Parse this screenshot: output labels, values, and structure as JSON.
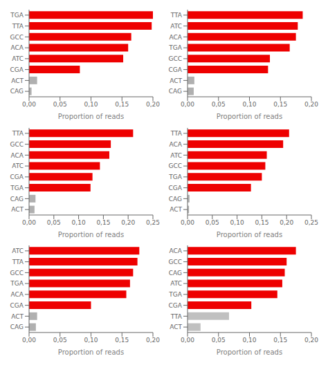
{
  "chart_data": [
    {
      "type": "bar",
      "orientation": "horizontal",
      "xlabel": "Proportion of reads",
      "categories": [
        "TGA",
        "TTA",
        "GCC",
        "ACA",
        "ATC",
        "CGA",
        "ACT",
        "CAG"
      ],
      "values": [
        0.2,
        0.198,
        0.165,
        0.16,
        0.152,
        0.082,
        0.013,
        0.004
      ],
      "colors": [
        "#ee0000",
        "#ee0000",
        "#ee0000",
        "#ee0000",
        "#ee0000",
        "#ee0000",
        "#b0b0b0",
        "#b0b0b0"
      ],
      "xlim": [
        0,
        0.2
      ],
      "xticks": [
        {
          "value": 0.0,
          "label": "0,00"
        },
        {
          "value": 0.05,
          "label": "0,05"
        },
        {
          "value": 0.1,
          "label": "0,10"
        },
        {
          "value": 0.15,
          "label": "0,15"
        },
        {
          "value": 0.2,
          "label": "0,20"
        }
      ]
    },
    {
      "type": "bar",
      "orientation": "horizontal",
      "xlabel": "Proportion of reads",
      "categories": [
        "TTA",
        "ATC",
        "ACA",
        "TGA",
        "GCC",
        "CGA",
        "ACT",
        "CAG"
      ],
      "values": [
        0.186,
        0.178,
        0.175,
        0.165,
        0.133,
        0.13,
        0.011,
        0.01
      ],
      "colors": [
        "#ee0000",
        "#ee0000",
        "#ee0000",
        "#ee0000",
        "#ee0000",
        "#ee0000",
        "#b0b0b0",
        "#b0b0b0"
      ],
      "xlim": [
        0,
        0.2
      ],
      "xticks": [
        {
          "value": 0.0,
          "label": "0,00"
        },
        {
          "value": 0.05,
          "label": "0,05"
        },
        {
          "value": 0.1,
          "label": "0,10"
        },
        {
          "value": 0.15,
          "label": "0,15"
        },
        {
          "value": 0.2,
          "label": "0,20"
        }
      ]
    },
    {
      "type": "bar",
      "orientation": "horizontal",
      "xlabel": "Proportion of reads",
      "categories": [
        "TTA",
        "GCC",
        "ACA",
        "ATC",
        "CGA",
        "TGA",
        "CAG",
        "ACT"
      ],
      "values": [
        0.21,
        0.165,
        0.162,
        0.143,
        0.128,
        0.124,
        0.013,
        0.011
      ],
      "colors": [
        "#ee0000",
        "#ee0000",
        "#ee0000",
        "#ee0000",
        "#ee0000",
        "#ee0000",
        "#b0b0b0",
        "#b0b0b0"
      ],
      "xlim": [
        0,
        0.25
      ],
      "xticks": [
        {
          "value": 0.0,
          "label": "0,00"
        },
        {
          "value": 0.05,
          "label": "0,05"
        },
        {
          "value": 0.1,
          "label": "0,10"
        },
        {
          "value": 0.15,
          "label": "0,15"
        },
        {
          "value": 0.2,
          "label": "0,20"
        },
        {
          "value": 0.25,
          "label": "0,25"
        }
      ]
    },
    {
      "type": "bar",
      "orientation": "horizontal",
      "xlabel": "Proportion of reads",
      "categories": [
        "TTA",
        "ACA",
        "ATC",
        "GCC",
        "TGA",
        "CGA",
        "CAG",
        "ACT"
      ],
      "values": [
        0.205,
        0.193,
        0.16,
        0.157,
        0.15,
        0.128,
        0.004,
        0.003
      ],
      "colors": [
        "#ee0000",
        "#ee0000",
        "#ee0000",
        "#ee0000",
        "#ee0000",
        "#ee0000",
        "#b0b0b0",
        "#b0b0b0"
      ],
      "xlim": [
        0,
        0.25
      ],
      "xticks": [
        {
          "value": 0.0,
          "label": "0,00"
        },
        {
          "value": 0.05,
          "label": "0,05"
        },
        {
          "value": 0.1,
          "label": "0,10"
        },
        {
          "value": 0.15,
          "label": "0,15"
        },
        {
          "value": 0.2,
          "label": "0,20"
        },
        {
          "value": 0.25,
          "label": "0,25"
        }
      ]
    },
    {
      "type": "bar",
      "orientation": "horizontal",
      "xlabel": "Proportion of reads",
      "categories": [
        "ATC",
        "TTA",
        "GCC",
        "TGA",
        "ACA",
        "CGA",
        "ACT",
        "CAG"
      ],
      "values": [
        0.178,
        0.175,
        0.168,
        0.163,
        0.157,
        0.1,
        0.013,
        0.011
      ],
      "colors": [
        "#ee0000",
        "#ee0000",
        "#ee0000",
        "#ee0000",
        "#ee0000",
        "#ee0000",
        "#b0b0b0",
        "#b0b0b0"
      ],
      "xlim": [
        0,
        0.2
      ],
      "xticks": [
        {
          "value": 0.0,
          "label": "0,00"
        },
        {
          "value": 0.05,
          "label": "0,05"
        },
        {
          "value": 0.1,
          "label": "0,10"
        },
        {
          "value": 0.15,
          "label": "0,15"
        },
        {
          "value": 0.2,
          "label": "0,20"
        }
      ]
    },
    {
      "type": "bar",
      "orientation": "horizontal",
      "xlabel": "Proportion of reads",
      "categories": [
        "ACA",
        "GCC",
        "CAG",
        "ATC",
        "TGA",
        "CGA",
        "TTA",
        "ACT"
      ],
      "values": [
        0.175,
        0.16,
        0.157,
        0.153,
        0.145,
        0.103,
        0.067,
        0.021
      ],
      "colors": [
        "#ee0000",
        "#ee0000",
        "#ee0000",
        "#ee0000",
        "#ee0000",
        "#ee0000",
        "#c0c0c0",
        "#c0c0c0"
      ],
      "xlim": [
        0,
        0.2
      ],
      "xticks": [
        {
          "value": 0.0,
          "label": "0,00"
        },
        {
          "value": 0.05,
          "label": "0,05"
        },
        {
          "value": 0.1,
          "label": "0,10"
        },
        {
          "value": 0.15,
          "label": "0,15"
        },
        {
          "value": 0.2,
          "label": "0,20"
        }
      ]
    }
  ]
}
